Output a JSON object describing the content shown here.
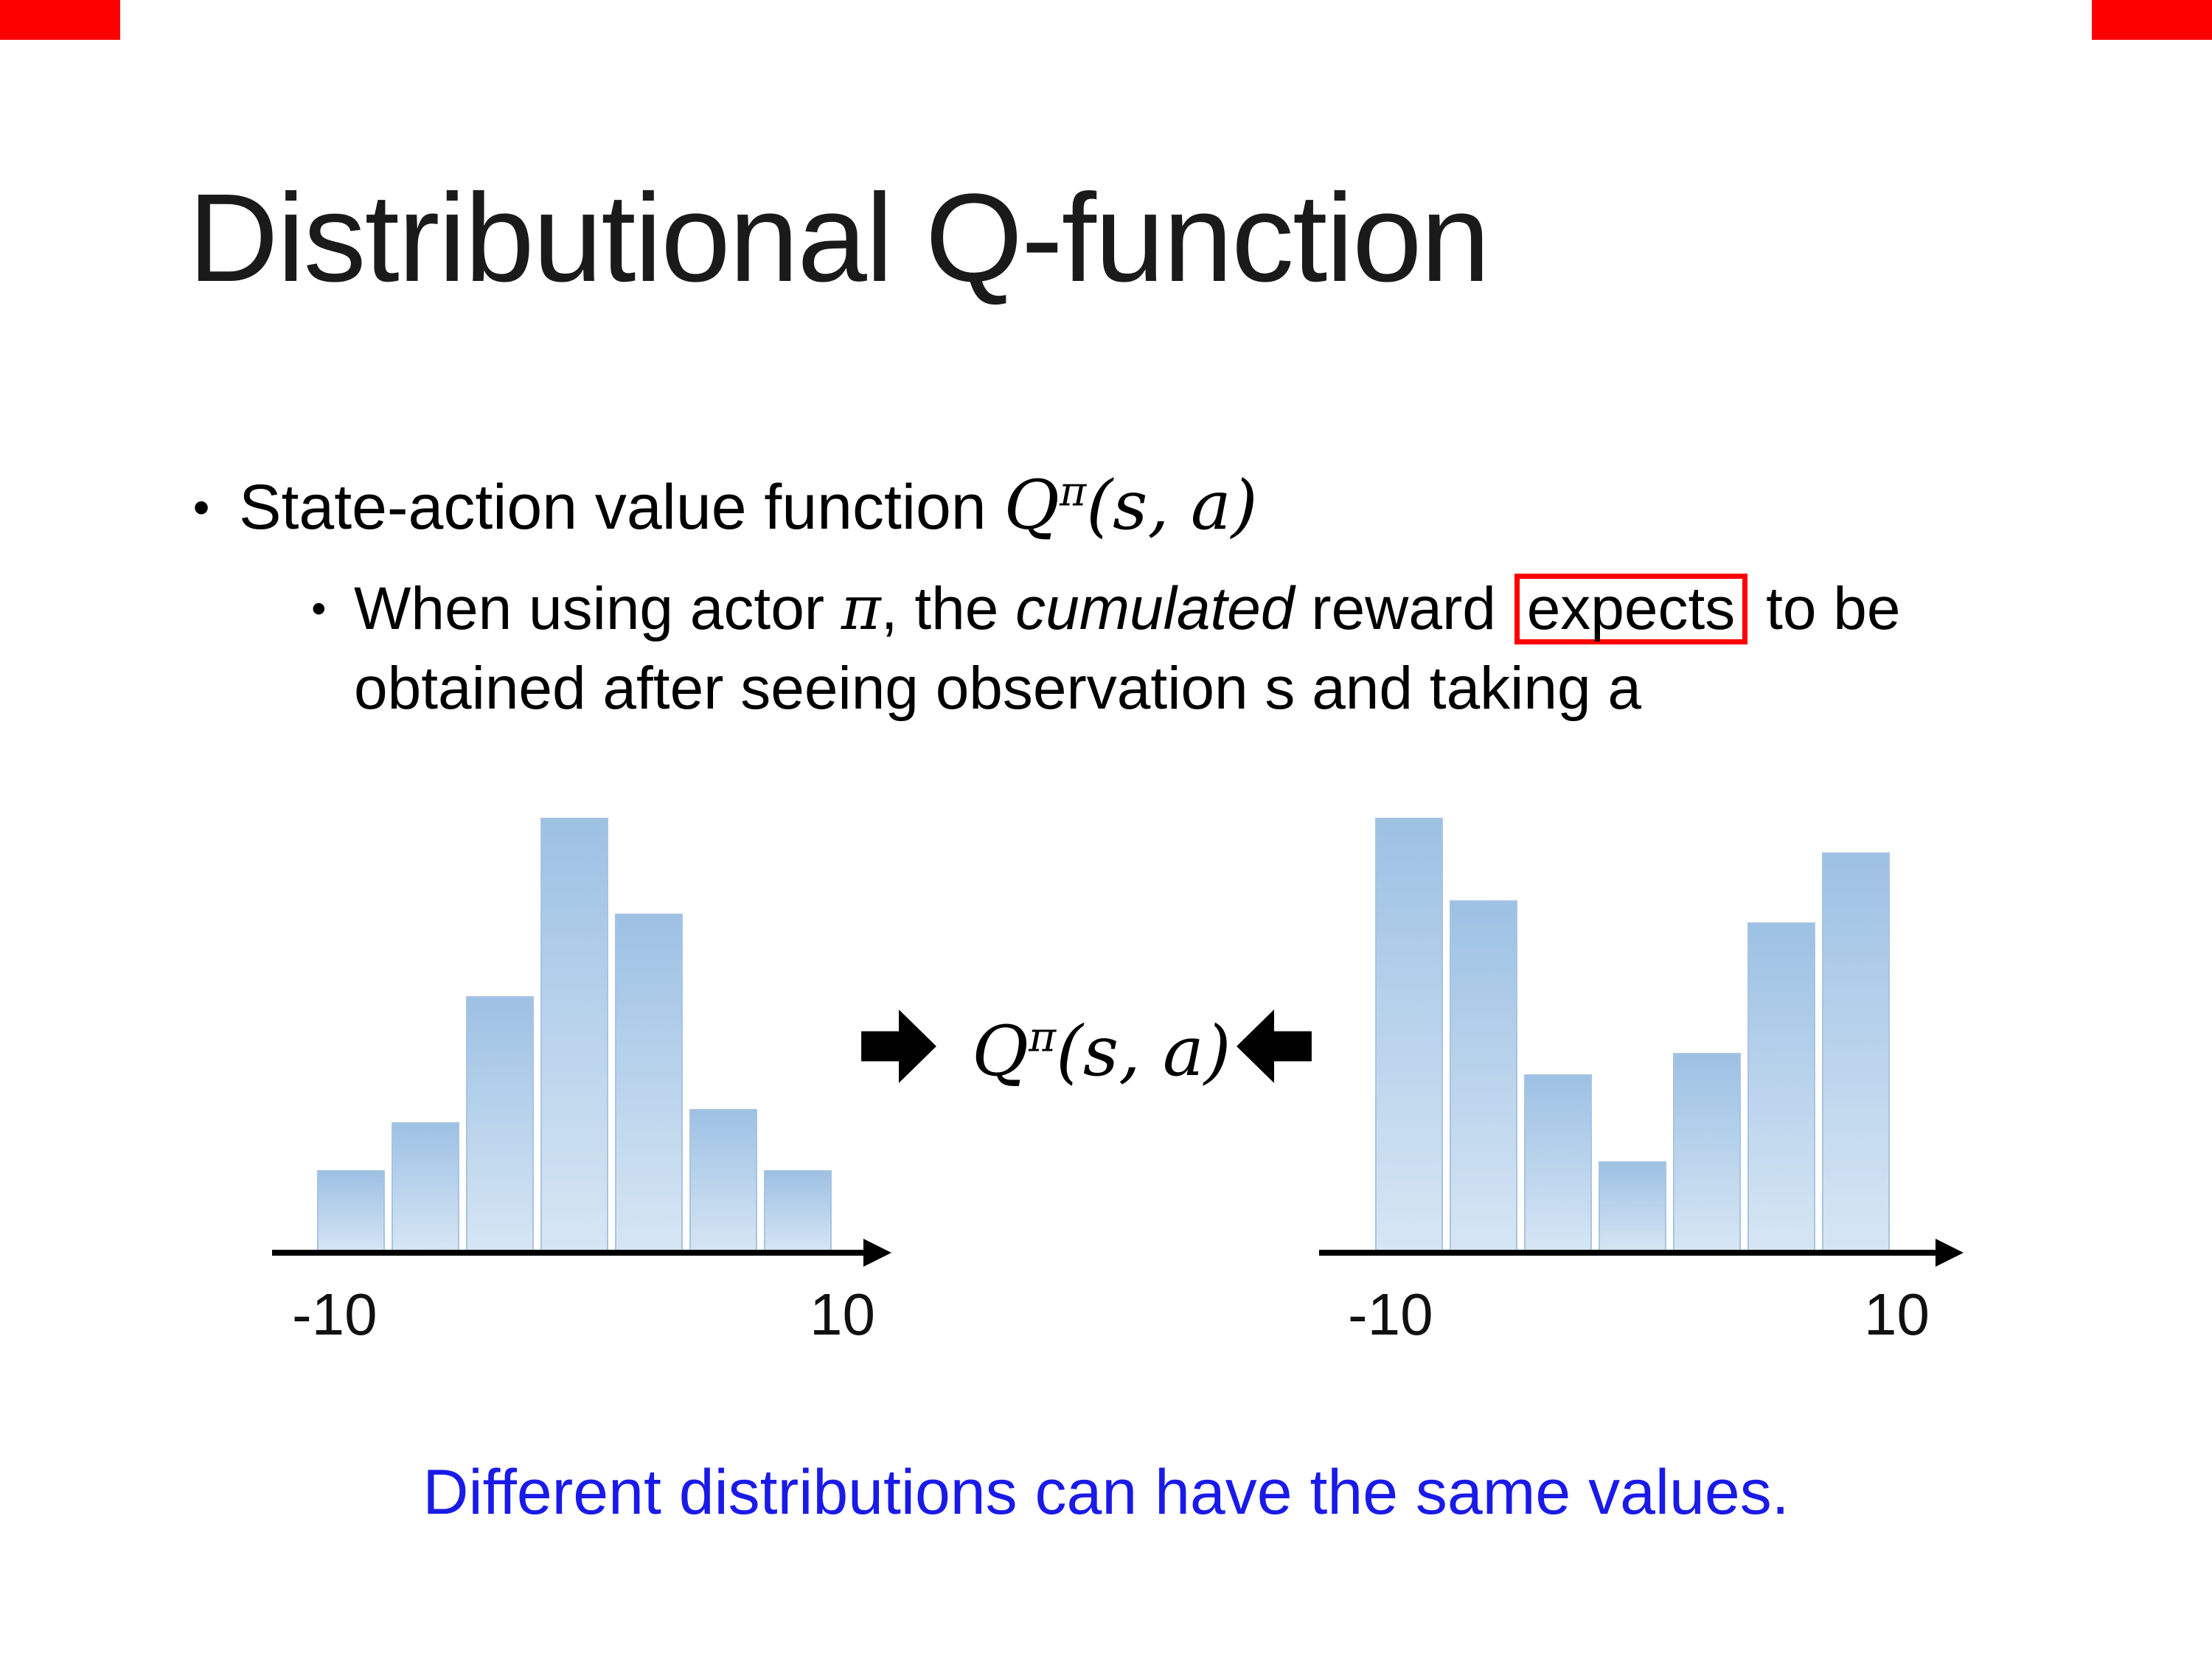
{
  "slide": {
    "bullet_char": "•",
    "title": "Distributional Q-function",
    "bullet1": {
      "text": "State-action value function ",
      "math_q": "Q",
      "math_sup": "π",
      "math_args": "(s, a)"
    },
    "bullet2": {
      "part1": "When using actor ",
      "pi": "π",
      "part2": ", the ",
      "italic_word": "cumulated",
      "part3": " reward ",
      "boxed": "expects",
      "part4": " to be obtained after seeing observation s and taking a"
    },
    "center_math": {
      "q": "Q",
      "sup": "π",
      "args": "(s, a)"
    },
    "footer": "Different distributions can have the same values.",
    "icons": {
      "left": "arrow-left-icon",
      "right": "arrow-right-icon"
    },
    "colors": {
      "accent_red": "#ff0000",
      "footer_blue": "#1a1ae8",
      "bar_fill_top": "#9dc1e4",
      "bar_fill_bottom": "#d7e6f4",
      "axis_black": "#000000"
    }
  },
  "chart_data": [
    {
      "type": "bar",
      "title": "left distribution (unimodal)",
      "xlabel": "",
      "ylabel": "",
      "x_range": [
        -10,
        10
      ],
      "x_min_label": "-10",
      "x_max_label": "10",
      "values": [
        0.19,
        0.3,
        0.59,
        1.0,
        0.78,
        0.33,
        0.19
      ]
    },
    {
      "type": "bar",
      "title": "right distribution (bimodal)",
      "xlabel": "",
      "ylabel": "",
      "x_range": [
        -10,
        10
      ],
      "x_min_label": "-10",
      "x_max_label": "10",
      "values": [
        1.0,
        0.81,
        0.41,
        0.21,
        0.46,
        0.76,
        0.92
      ]
    }
  ]
}
